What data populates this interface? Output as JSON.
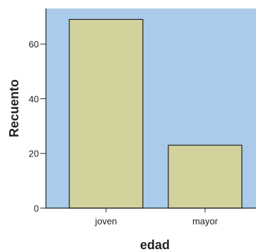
{
  "chart_data": {
    "type": "bar",
    "categories": [
      "joven",
      "mayor"
    ],
    "values": [
      69,
      23
    ],
    "xlabel": "edad",
    "ylabel": "Recuento",
    "ylim": [
      0,
      73
    ],
    "yticks": [
      0,
      20,
      40,
      60
    ],
    "grid": false,
    "colors": {
      "background": "#aacbea",
      "bar_fill": "#d3d29d",
      "bar_stroke": "#222222",
      "axis": "#222222"
    }
  }
}
